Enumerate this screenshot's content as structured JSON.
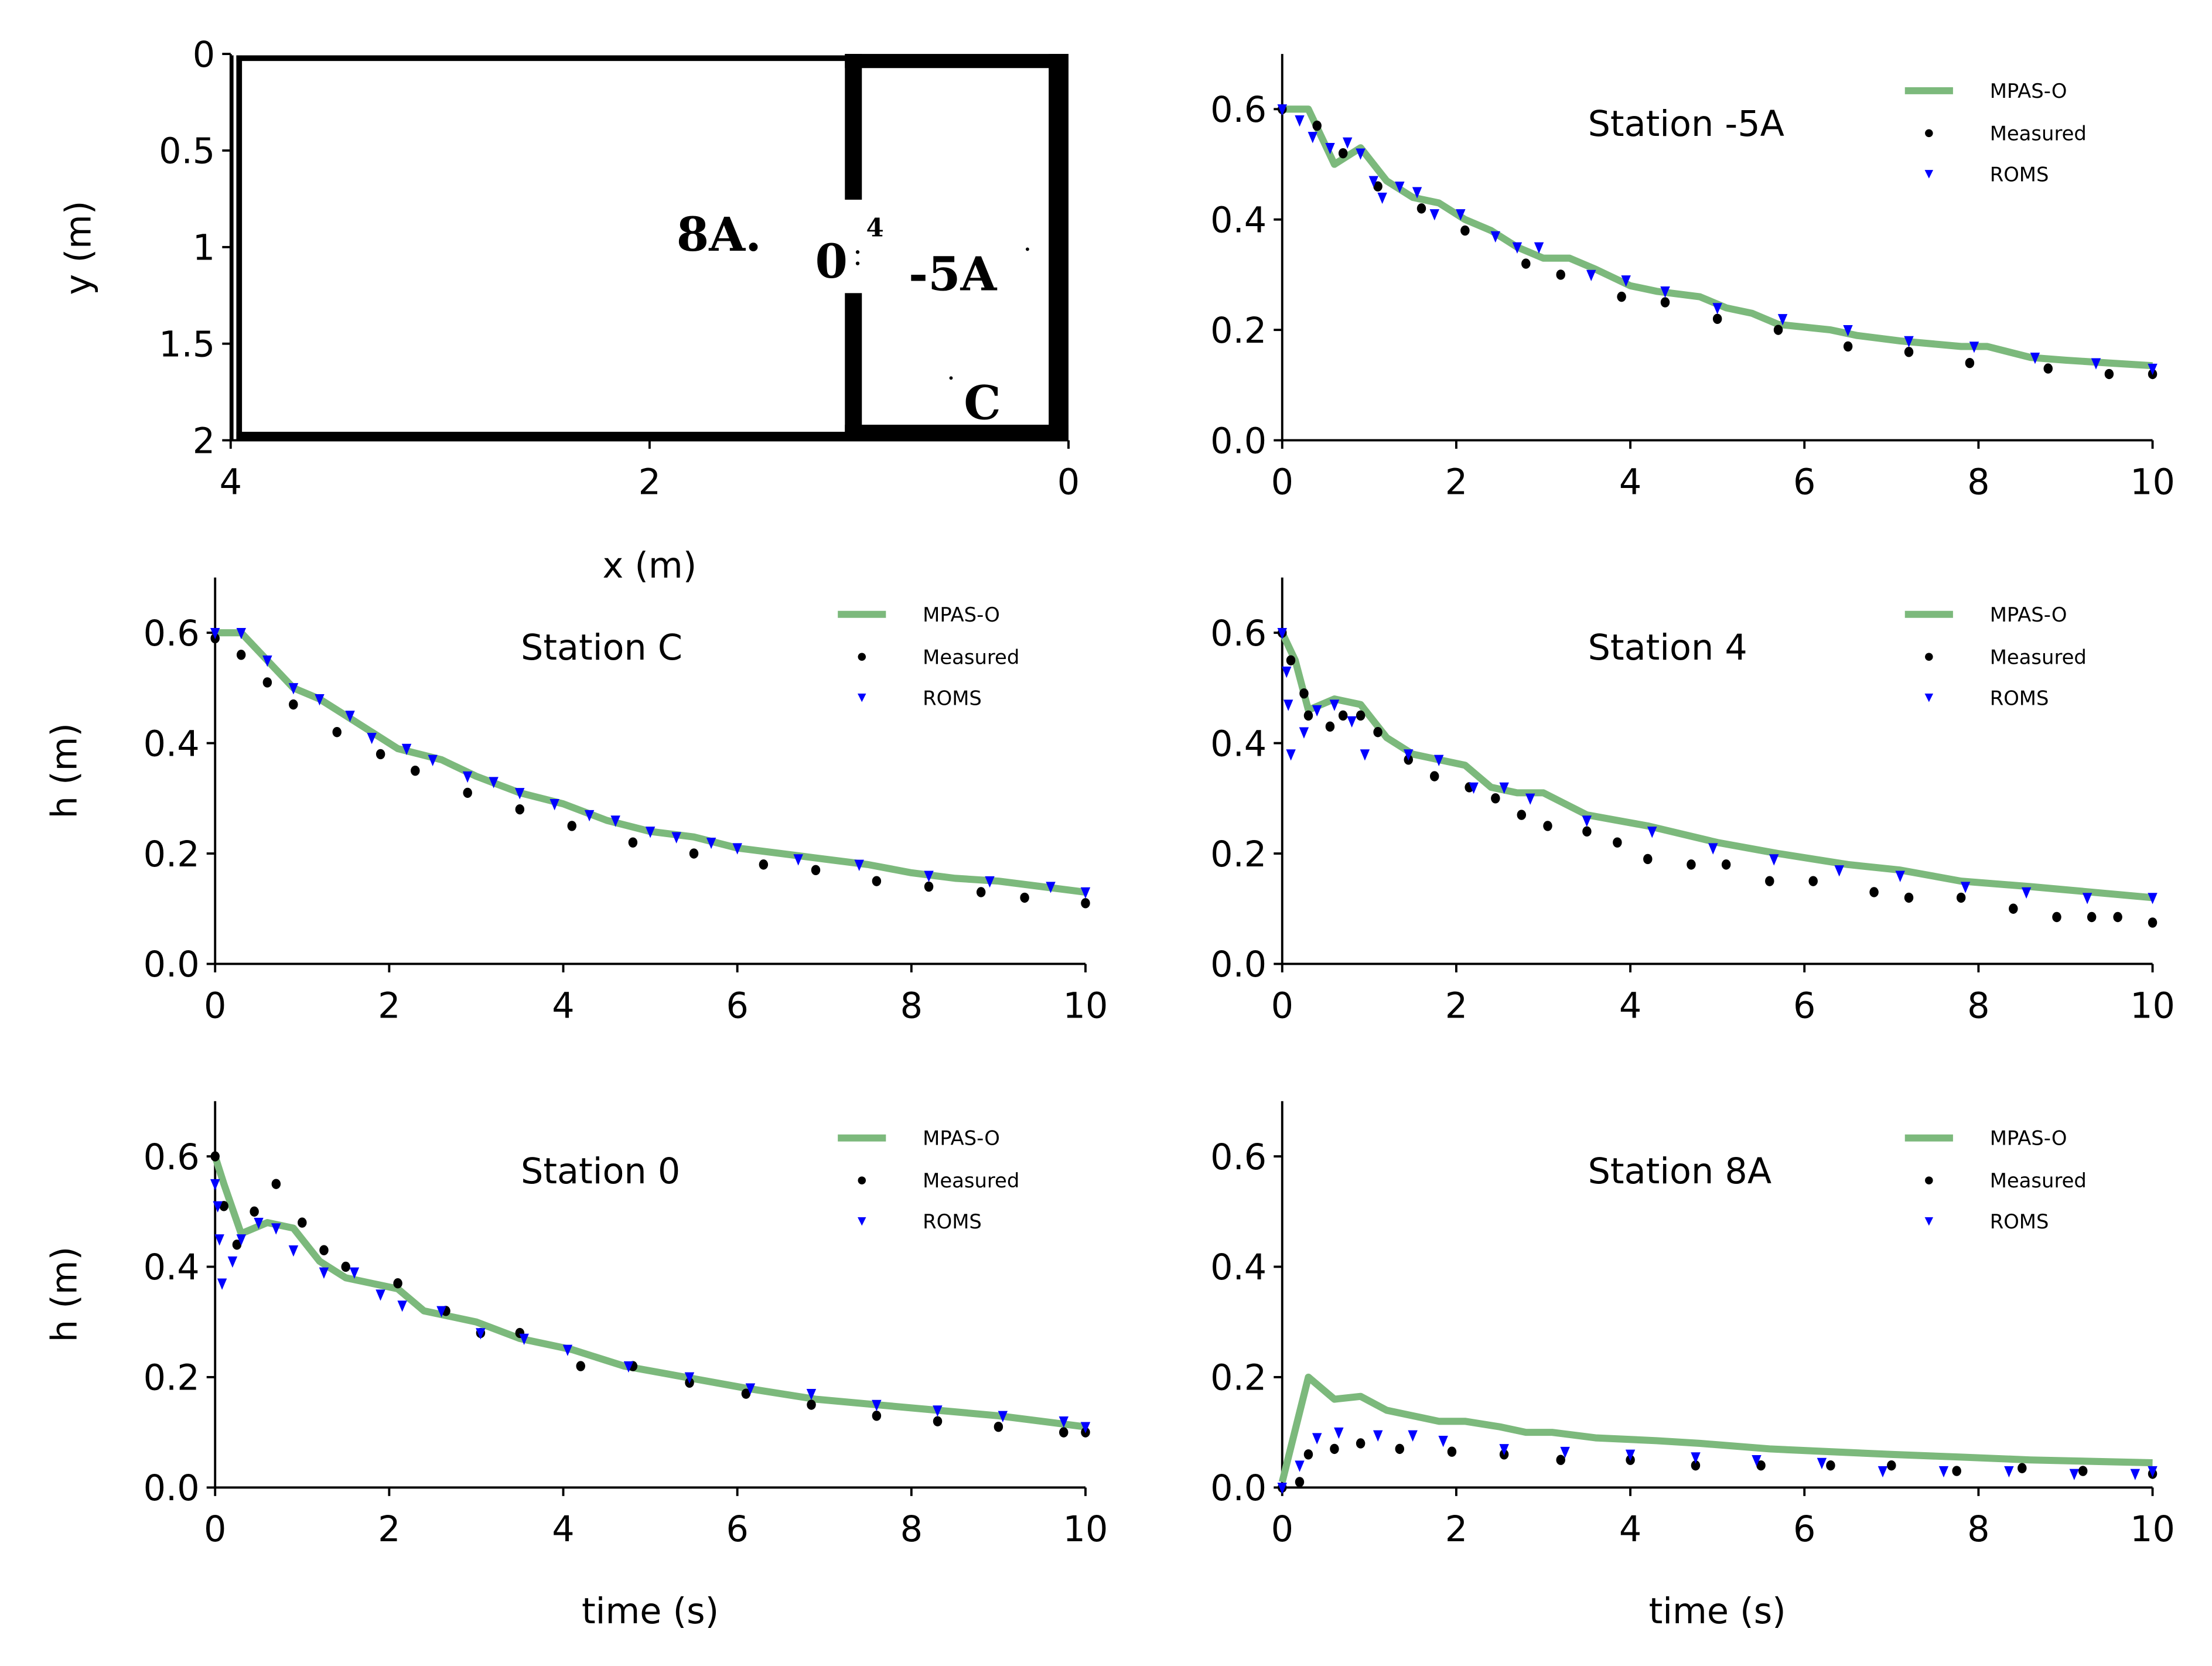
{
  "colors": {
    "mpas": "#7cb97c",
    "measured": "#000000",
    "roms": "#0000ff"
  },
  "legend": {
    "mpas": "MPAS-O",
    "measured": "Measured",
    "roms": "ROMS"
  },
  "diagram": {
    "xlabel": "x (m)",
    "ylabel": "y (m)",
    "xticks": [
      "4",
      "2",
      "0"
    ],
    "yticks": [
      "0",
      "0.5",
      "1",
      "1.5",
      "2"
    ],
    "xlim": [
      4,
      0
    ],
    "ylim": [
      0,
      2
    ],
    "station_labels": {
      "s8A": "8A.",
      "s0": "0",
      "s4": "4",
      "s5A": "-5A",
      "sC": "C"
    }
  },
  "chart_data": [
    {
      "type": "line",
      "title": "Station -5A",
      "xlabel": "",
      "ylabel": "",
      "xlim": [
        0,
        10
      ],
      "ylim": [
        0,
        0.7
      ],
      "xticks": [
        "0",
        "2",
        "4",
        "6",
        "8",
        "10"
      ],
      "yticks": [
        "0.0",
        "0.2",
        "0.4",
        "0.6"
      ],
      "legend_position": "top-right",
      "series": [
        {
          "name": "MPAS-O",
          "kind": "line",
          "x": [
            0,
            0.3,
            0.6,
            0.8,
            0.9,
            1.2,
            1.5,
            1.8,
            2.1,
            2.4,
            2.7,
            3.0,
            3.3,
            3.6,
            4.0,
            4.3,
            4.8,
            5.1,
            5.4,
            5.7,
            6.3,
            6.6,
            7.1,
            7.8,
            8.1,
            8.6,
            9.0,
            9.5,
            10
          ],
          "y": [
            0.6,
            0.6,
            0.5,
            0.52,
            0.53,
            0.47,
            0.44,
            0.43,
            0.4,
            0.38,
            0.35,
            0.33,
            0.33,
            0.31,
            0.28,
            0.27,
            0.26,
            0.24,
            0.23,
            0.21,
            0.2,
            0.19,
            0.18,
            0.17,
            0.17,
            0.15,
            0.145,
            0.14,
            0.135
          ]
        },
        {
          "name": "Measured",
          "kind": "scatter",
          "x": [
            0,
            0.4,
            0.7,
            1.1,
            1.6,
            2.1,
            2.8,
            3.2,
            3.9,
            4.4,
            5.0,
            5.7,
            6.5,
            7.2,
            7.9,
            8.8,
            9.5,
            10
          ],
          "y": [
            0.6,
            0.57,
            0.52,
            0.46,
            0.42,
            0.38,
            0.32,
            0.3,
            0.26,
            0.25,
            0.22,
            0.2,
            0.17,
            0.16,
            0.14,
            0.13,
            0.12,
            0.12
          ]
        },
        {
          "name": "ROMS",
          "kind": "scatter",
          "x": [
            0,
            0.2,
            0.35,
            0.55,
            0.75,
            0.9,
            1.05,
            1.15,
            1.35,
            1.55,
            1.75,
            2.05,
            2.45,
            2.7,
            2.95,
            3.55,
            3.95,
            4.4,
            5.0,
            5.75,
            6.5,
            7.2,
            7.95,
            8.65,
            9.35,
            10
          ],
          "y": [
            0.6,
            0.58,
            0.55,
            0.53,
            0.54,
            0.52,
            0.47,
            0.44,
            0.46,
            0.45,
            0.41,
            0.41,
            0.37,
            0.35,
            0.35,
            0.3,
            0.29,
            0.27,
            0.24,
            0.22,
            0.2,
            0.18,
            0.17,
            0.15,
            0.14,
            0.13
          ]
        }
      ]
    },
    {
      "type": "line",
      "title": "Station C",
      "xlabel": "",
      "ylabel": "h (m)",
      "xlim": [
        0,
        10
      ],
      "ylim": [
        0,
        0.7
      ],
      "xticks": [
        "0",
        "2",
        "4",
        "6",
        "8",
        "10"
      ],
      "yticks": [
        "0.0",
        "0.2",
        "0.4",
        "0.6"
      ],
      "legend_position": "top-right",
      "series": [
        {
          "name": "MPAS-O",
          "kind": "line",
          "x": [
            0,
            0.3,
            0.9,
            1.2,
            1.5,
            1.8,
            2.1,
            2.6,
            3.0,
            3.5,
            4.0,
            4.5,
            5.0,
            5.5,
            6.0,
            6.5,
            7.0,
            7.5,
            8.0,
            8.5,
            9.0,
            10
          ],
          "y": [
            0.6,
            0.6,
            0.5,
            0.48,
            0.45,
            0.42,
            0.39,
            0.37,
            0.34,
            0.31,
            0.29,
            0.26,
            0.24,
            0.23,
            0.21,
            0.2,
            0.19,
            0.18,
            0.165,
            0.155,
            0.15,
            0.13
          ]
        },
        {
          "name": "Measured",
          "kind": "scatter",
          "x": [
            0,
            0.3,
            0.6,
            0.9,
            1.4,
            1.9,
            2.3,
            2.9,
            3.5,
            4.1,
            4.8,
            5.5,
            6.3,
            6.9,
            7.6,
            8.2,
            8.8,
            9.3,
            10
          ],
          "y": [
            0.59,
            0.56,
            0.51,
            0.47,
            0.42,
            0.38,
            0.35,
            0.31,
            0.28,
            0.25,
            0.22,
            0.2,
            0.18,
            0.17,
            0.15,
            0.14,
            0.13,
            0.12,
            0.11
          ]
        },
        {
          "name": "ROMS",
          "kind": "scatter",
          "x": [
            0,
            0.3,
            0.6,
            0.9,
            1.2,
            1.55,
            1.8,
            2.2,
            2.5,
            2.9,
            3.2,
            3.5,
            3.9,
            4.3,
            4.6,
            5.0,
            5.3,
            5.7,
            6.0,
            6.7,
            7.4,
            8.2,
            8.9,
            9.6,
            10
          ],
          "y": [
            0.6,
            0.6,
            0.55,
            0.5,
            0.48,
            0.45,
            0.41,
            0.39,
            0.37,
            0.34,
            0.33,
            0.31,
            0.29,
            0.27,
            0.26,
            0.24,
            0.23,
            0.22,
            0.21,
            0.19,
            0.18,
            0.16,
            0.15,
            0.14,
            0.13
          ]
        }
      ]
    },
    {
      "type": "line",
      "title": "Station 4",
      "xlabel": "",
      "ylabel": "",
      "xlim": [
        0,
        10
      ],
      "ylim": [
        0,
        0.7
      ],
      "xticks": [
        "0",
        "2",
        "4",
        "6",
        "8",
        "10"
      ],
      "yticks": [
        "0.0",
        "0.2",
        "0.4",
        "0.6"
      ],
      "legend_position": "top-right",
      "series": [
        {
          "name": "MPAS-O",
          "kind": "line",
          "x": [
            0,
            0.15,
            0.3,
            0.6,
            0.9,
            1.2,
            1.5,
            1.8,
            2.1,
            2.4,
            2.7,
            3.0,
            3.5,
            4.2,
            5.0,
            5.7,
            6.5,
            7.1,
            7.8,
            8.6,
            9.3,
            10
          ],
          "y": [
            0.6,
            0.55,
            0.46,
            0.48,
            0.47,
            0.41,
            0.38,
            0.37,
            0.36,
            0.32,
            0.31,
            0.31,
            0.27,
            0.25,
            0.22,
            0.2,
            0.18,
            0.17,
            0.15,
            0.14,
            0.13,
            0.12
          ]
        },
        {
          "name": "Measured",
          "kind": "scatter",
          "x": [
            0,
            0.1,
            0.25,
            0.3,
            0.55,
            0.7,
            0.9,
            1.1,
            1.45,
            1.75,
            2.15,
            2.45,
            2.75,
            3.05,
            3.5,
            3.85,
            4.2,
            4.7,
            5.1,
            5.6,
            6.1,
            6.8,
            7.2,
            7.8,
            8.4,
            8.9,
            9.3,
            9.6,
            10
          ],
          "y": [
            0.6,
            0.55,
            0.49,
            0.45,
            0.43,
            0.45,
            0.45,
            0.42,
            0.37,
            0.34,
            0.32,
            0.3,
            0.27,
            0.25,
            0.24,
            0.22,
            0.19,
            0.18,
            0.18,
            0.15,
            0.15,
            0.13,
            0.12,
            0.12,
            0.1,
            0.085,
            0.085,
            0.085,
            0.075
          ]
        },
        {
          "name": "ROMS",
          "kind": "scatter",
          "x": [
            0,
            0.05,
            0.07,
            0.1,
            0.25,
            0.4,
            0.6,
            0.8,
            0.95,
            1.45,
            1.8,
            2.2,
            2.55,
            2.85,
            3.5,
            4.25,
            4.95,
            5.65,
            6.4,
            7.1,
            7.85,
            8.55,
            9.25,
            10
          ],
          "y": [
            0.6,
            0.53,
            0.47,
            0.38,
            0.42,
            0.46,
            0.47,
            0.44,
            0.38,
            0.38,
            0.37,
            0.32,
            0.32,
            0.3,
            0.26,
            0.24,
            0.21,
            0.19,
            0.17,
            0.16,
            0.14,
            0.13,
            0.12,
            0.12
          ]
        }
      ]
    },
    {
      "type": "line",
      "title": "Station 0",
      "xlabel": "time (s)",
      "ylabel": "h (m)",
      "xlim": [
        0,
        10
      ],
      "ylim": [
        0,
        0.7
      ],
      "xticks": [
        "0",
        "2",
        "4",
        "6",
        "8",
        "10"
      ],
      "yticks": [
        "0.0",
        "0.2",
        "0.4",
        "0.6"
      ],
      "legend_position": "top-right",
      "series": [
        {
          "name": "MPAS-O",
          "kind": "line",
          "x": [
            0,
            0.1,
            0.3,
            0.6,
            0.9,
            1.2,
            1.5,
            1.8,
            2.1,
            2.4,
            2.7,
            3.0,
            3.5,
            4.1,
            4.7,
            5.4,
            6.1,
            6.9,
            7.6,
            8.3,
            9.0,
            10
          ],
          "y": [
            0.6,
            0.55,
            0.46,
            0.48,
            0.47,
            0.41,
            0.38,
            0.37,
            0.36,
            0.32,
            0.31,
            0.3,
            0.27,
            0.25,
            0.22,
            0.2,
            0.18,
            0.16,
            0.15,
            0.14,
            0.13,
            0.11
          ]
        },
        {
          "name": "Measured",
          "kind": "scatter",
          "x": [
            0,
            0.1,
            0.25,
            0.45,
            0.7,
            1.0,
            1.25,
            1.5,
            2.1,
            2.65,
            3.05,
            3.5,
            4.2,
            4.8,
            5.45,
            6.1,
            6.85,
            7.6,
            8.3,
            9.0,
            9.75,
            10
          ],
          "y": [
            0.6,
            0.51,
            0.44,
            0.5,
            0.55,
            0.48,
            0.43,
            0.4,
            0.37,
            0.32,
            0.28,
            0.28,
            0.22,
            0.22,
            0.19,
            0.17,
            0.15,
            0.13,
            0.12,
            0.11,
            0.1,
            0.1
          ]
        },
        {
          "name": "ROMS",
          "kind": "scatter",
          "x": [
            0,
            0.03,
            0.05,
            0.08,
            0.2,
            0.3,
            0.5,
            0.7,
            0.9,
            1.25,
            1.6,
            1.9,
            2.15,
            2.6,
            3.05,
            3.55,
            4.05,
            4.75,
            5.45,
            6.15,
            6.85,
            7.6,
            8.3,
            9.05,
            9.75,
            10
          ],
          "y": [
            0.55,
            0.51,
            0.45,
            0.37,
            0.41,
            0.45,
            0.48,
            0.47,
            0.43,
            0.39,
            0.39,
            0.35,
            0.33,
            0.32,
            0.28,
            0.27,
            0.25,
            0.22,
            0.2,
            0.18,
            0.17,
            0.15,
            0.14,
            0.13,
            0.12,
            0.11
          ]
        }
      ]
    },
    {
      "type": "line",
      "title": "Station 8A",
      "xlabel": "time (s)",
      "ylabel": "",
      "xlim": [
        0,
        10
      ],
      "ylim": [
        0,
        0.7
      ],
      "xticks": [
        "0",
        "2",
        "4",
        "6",
        "8",
        "10"
      ],
      "yticks": [
        "0.0",
        "0.2",
        "0.4",
        "0.6"
      ],
      "legend_position": "top-right",
      "series": [
        {
          "name": "MPAS-O",
          "kind": "line",
          "x": [
            0,
            0.3,
            0.6,
            0.9,
            1.2,
            1.5,
            1.8,
            2.1,
            2.5,
            2.8,
            3.1,
            3.6,
            4.3,
            4.8,
            5.6,
            6.3,
            7.0,
            7.8,
            8.6,
            10
          ],
          "y": [
            0.01,
            0.2,
            0.16,
            0.165,
            0.14,
            0.13,
            0.12,
            0.12,
            0.11,
            0.1,
            0.1,
            0.09,
            0.085,
            0.08,
            0.07,
            0.065,
            0.06,
            0.055,
            0.05,
            0.045
          ]
        },
        {
          "name": "Measured",
          "kind": "scatter",
          "x": [
            0,
            0.2,
            0.3,
            0.6,
            0.9,
            1.35,
            1.95,
            2.55,
            3.2,
            4.0,
            4.75,
            5.5,
            6.3,
            7.0,
            7.75,
            8.5,
            9.2,
            10
          ],
          "y": [
            0.0,
            0.01,
            0.06,
            0.07,
            0.08,
            0.07,
            0.065,
            0.06,
            0.05,
            0.05,
            0.04,
            0.04,
            0.04,
            0.04,
            0.03,
            0.035,
            0.03,
            0.025
          ]
        },
        {
          "name": "ROMS",
          "kind": "scatter",
          "x": [
            0,
            0.2,
            0.4,
            0.65,
            1.1,
            1.5,
            1.85,
            2.55,
            3.25,
            4.0,
            4.75,
            5.45,
            6.2,
            6.9,
            7.6,
            8.35,
            9.1,
            9.8,
            10
          ],
          "y": [
            0.0,
            0.04,
            0.09,
            0.1,
            0.095,
            0.095,
            0.085,
            0.07,
            0.065,
            0.06,
            0.055,
            0.05,
            0.045,
            0.03,
            0.03,
            0.03,
            0.025,
            0.025,
            0.03
          ]
        }
      ]
    }
  ]
}
